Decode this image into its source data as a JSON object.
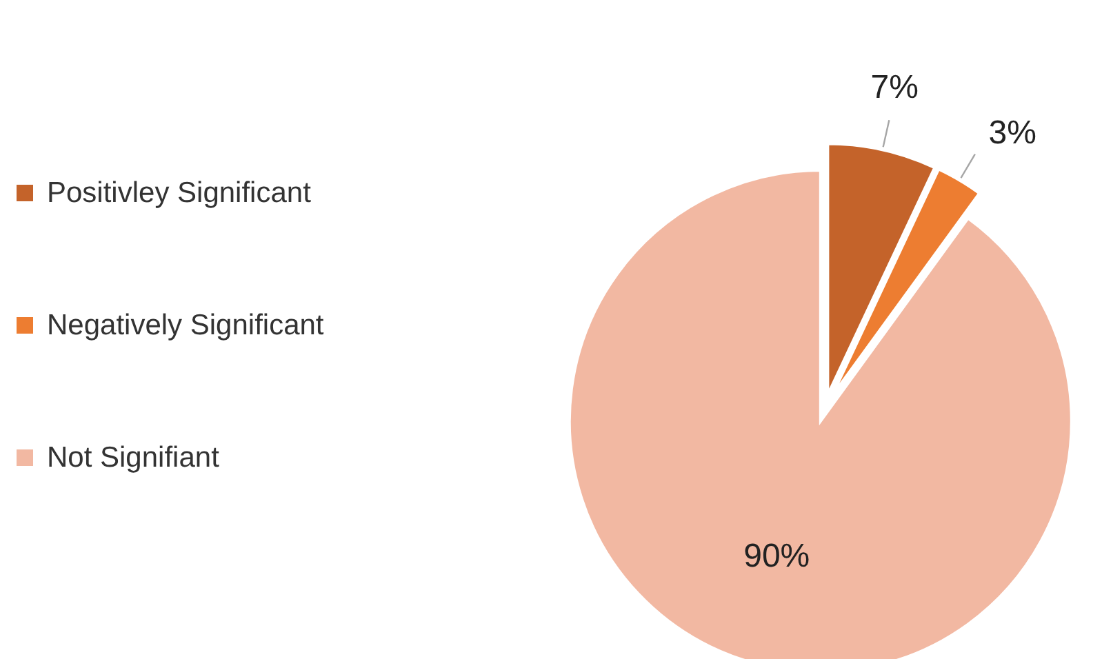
{
  "chart_data": {
    "type": "pie",
    "categories": [
      "Positivley Significant",
      "Negatively Significant",
      "Not Signifiant"
    ],
    "values": [
      7,
      3,
      90
    ],
    "colors": [
      "#c4632a",
      "#ed7d31",
      "#f2b8a2"
    ],
    "value_labels": [
      "7%",
      "3%",
      "90%"
    ],
    "legend": "left"
  }
}
